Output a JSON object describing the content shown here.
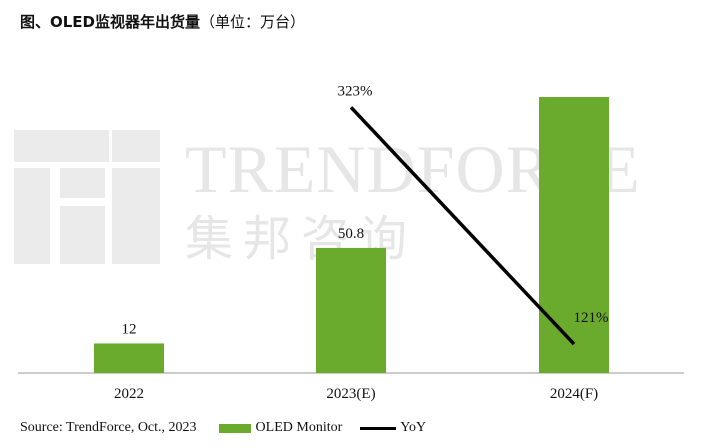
{
  "title": {
    "bold": "图、OLED监视器年出货量",
    "unit": "（单位：万台）"
  },
  "watermark": {
    "text_en": "TRENDFORCE",
    "text_cn": "集邦咨询"
  },
  "source": "Source: TrendForce, Oct., 2023",
  "colors": {
    "bar": "#6aaa2c",
    "line": "#000000",
    "axis": "#9a9a9a",
    "watermark": "#e9e9e9"
  },
  "chart_data": {
    "type": "bar",
    "categories": [
      "2022",
      "2023(E)",
      "2024(F)"
    ],
    "series": [
      {
        "name": "OLED Monitor",
        "type": "bar",
        "values": [
          12,
          50.8,
          112.1
        ],
        "labels": [
          "12",
          "50.8",
          ""
        ]
      },
      {
        "name": "YoY",
        "type": "line",
        "points": [
          {
            "category": "2023(E)",
            "value": 323,
            "label": "323%"
          },
          {
            "category": "2024(F)",
            "value": 121,
            "label": "121%"
          }
        ]
      }
    ],
    "legend": {
      "items": [
        "OLED Monitor",
        "YoY"
      ],
      "position": "bottom"
    },
    "grid": false
  }
}
